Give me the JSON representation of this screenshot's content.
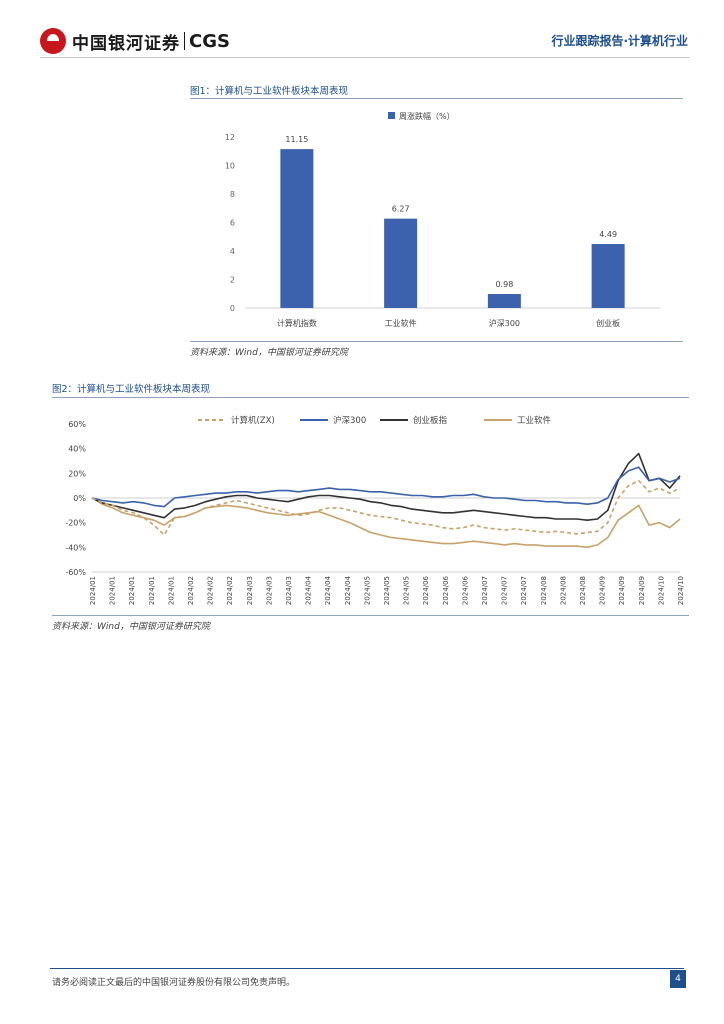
{
  "header": {
    "logo_cn": "中国银河证券",
    "logo_en": "CGS",
    "report_type": "行业跟踪报告·计算机行业"
  },
  "figure1": {
    "title": "图1：计算机与工业软件板块本周表现",
    "source": "资料来源：Wind，中国银河证券研究院"
  },
  "figure2": {
    "title": "图2：计算机与工业软件板块本周表现",
    "source": "资料来源：Wind，中国银河证券研究院"
  },
  "footer": {
    "disclaimer": "请务必阅读正文最后的中国银河证券股份有限公司免责声明。",
    "page": "4"
  },
  "chart_data": [
    {
      "type": "bar",
      "legend": "周涨跌幅（%）",
      "categories": [
        "计算机指数",
        "工业软件",
        "沪深300",
        "创业板"
      ],
      "values": [
        11.15,
        6.27,
        0.98,
        4.49
      ],
      "data_labels": [
        "11.15",
        "6.27",
        "0.98",
        "4.49"
      ],
      "ylim": [
        0,
        12
      ],
      "yticks": [
        "0",
        "2",
        "4",
        "6",
        "8",
        "10",
        "12"
      ],
      "colors": {
        "bar": "#3c62ad"
      },
      "grid": false,
      "legend_position": "top"
    },
    {
      "type": "line",
      "ylim": [
        -60,
        60
      ],
      "yticks": [
        "-60%",
        "-40%",
        "-20%",
        "0%",
        "20%",
        "40%",
        "60%"
      ],
      "x_tick_labels": [
        "2024/01",
        "2024/01",
        "2024/01",
        "2024/01",
        "2024/01",
        "2024/02",
        "2024/02",
        "2024/02",
        "2024/03",
        "2024/03",
        "2024/03",
        "2024/04",
        "2024/04",
        "2024/04",
        "2024/05",
        "2024/05",
        "2024/05",
        "2024/06",
        "2024/06",
        "2024/06",
        "2024/07",
        "2024/07",
        "2024/07",
        "2024/08",
        "2024/08",
        "2024/08",
        "2024/09",
        "2024/09",
        "2024/09",
        "2024/10",
        "2024/10"
      ],
      "legend_position": "top",
      "grid": false,
      "series": [
        {
          "name": "计算机(ZX)",
          "color": "#c9a26b",
          "dash": true,
          "values": [
            0,
            -4,
            -6,
            -10,
            -12,
            -16,
            -22,
            -30,
            -16,
            -15,
            -12,
            -8,
            -6,
            -4,
            -2,
            -4,
            -6,
            -8,
            -10,
            -12,
            -14,
            -13,
            -10,
            -8,
            -8,
            -10,
            -12,
            -14,
            -15,
            -16,
            -18,
            -20,
            -21,
            -22,
            -24,
            -25,
            -24,
            -22,
            -24,
            -25,
            -26,
            -25,
            -26,
            -27,
            -28,
            -27,
            -28,
            -29,
            -28,
            -27,
            -20,
            0,
            10,
            14,
            5,
            8,
            4,
            8
          ]
        },
        {
          "name": "沪深300",
          "color": "#3c62ad",
          "dash": false,
          "values": [
            0,
            -2,
            -3,
            -4,
            -3,
            -4,
            -6,
            -7,
            0,
            1,
            2,
            3,
            4,
            4,
            5,
            5,
            4,
            5,
            6,
            6,
            5,
            6,
            7,
            8,
            7,
            7,
            6,
            5,
            5,
            4,
            3,
            2,
            2,
            1,
            1,
            2,
            2,
            3,
            1,
            0,
            0,
            -1,
            -2,
            -2,
            -3,
            -3,
            -4,
            -4,
            -5,
            -4,
            0,
            15,
            22,
            25,
            14,
            16,
            13,
            16
          ]
        },
        {
          "name": "创业板指",
          "color": "#333333",
          "dash": false,
          "values": [
            0,
            -4,
            -6,
            -8,
            -10,
            -12,
            -14,
            -16,
            -9,
            -8,
            -6,
            -3,
            -1,
            1,
            2,
            2,
            0,
            -1,
            -2,
            -3,
            -1,
            1,
            2,
            2,
            1,
            0,
            -1,
            -3,
            -4,
            -6,
            -7,
            -9,
            -10,
            -11,
            -12,
            -12,
            -11,
            -10,
            -11,
            -12,
            -13,
            -14,
            -15,
            -16,
            -16,
            -17,
            -17,
            -17,
            -18,
            -17,
            -10,
            14,
            28,
            36,
            14,
            16,
            8,
            18
          ]
        },
        {
          "name": "工业软件",
          "color": "#c9a26b",
          "dash": false,
          "values": [
            0,
            -5,
            -8,
            -12,
            -14,
            -16,
            -18,
            -22,
            -16,
            -15,
            -12,
            -8,
            -7,
            -6,
            -7,
            -8,
            -10,
            -12,
            -13,
            -14,
            -13,
            -12,
            -11,
            -14,
            -17,
            -20,
            -24,
            -28,
            -30,
            -32,
            -33,
            -34,
            -35,
            -36,
            -37,
            -37,
            -36,
            -35,
            -36,
            -37,
            -38,
            -37,
            -38,
            -38,
            -39,
            -39,
            -39,
            -39,
            -40,
            -38,
            -32,
            -18,
            -12,
            -6,
            -22,
            -20,
            -24,
            -17
          ]
        }
      ]
    }
  ]
}
